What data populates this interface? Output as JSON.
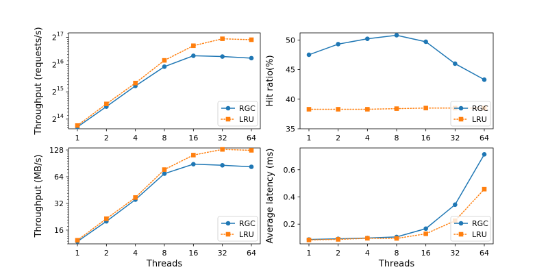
{
  "chart_data": [
    {
      "id": "throughput-req",
      "type": "line",
      "ylabel": "Throughput (requests/s)",
      "xlabel": "",
      "x": [
        1,
        2,
        4,
        8,
        16,
        32,
        64
      ],
      "xticks": [
        "1",
        "2",
        "4",
        "8",
        "16",
        "32",
        "64"
      ],
      "xscale": "log2",
      "yscale": "log2",
      "ylim": [
        12800,
        147000
      ],
      "yticks": [
        {
          "value": 16384,
          "base": "2",
          "exp": "14"
        },
        {
          "value": 32768,
          "base": "2",
          "exp": "15"
        },
        {
          "value": 65536,
          "base": "2",
          "exp": "16"
        },
        {
          "value": 131072,
          "base": "2",
          "exp": "17"
        }
      ],
      "legend": "lower-right",
      "series": [
        {
          "name": "RGC",
          "color": "#1f77b4",
          "marker": "circle",
          "linestyle": "solid",
          "values": [
            13400,
            22500,
            38100,
            62200,
            82100,
            80500,
            77300
          ]
        },
        {
          "name": "LRU",
          "color": "#ff7f0e",
          "marker": "square",
          "linestyle": "dotted",
          "values": [
            13900,
            24100,
            41000,
            73000,
            106000,
            126500,
            123500
          ]
        }
      ]
    },
    {
      "id": "hit-ratio",
      "type": "line",
      "ylabel": "Hit ratio(%)",
      "xlabel": "",
      "x": [
        1,
        2,
        4,
        8,
        16,
        32,
        64
      ],
      "xticks": [
        "1",
        "2",
        "4",
        "8",
        "16",
        "32",
        "64"
      ],
      "xscale": "log2",
      "yscale": "linear",
      "ylim": [
        35,
        51.2
      ],
      "yticks": [
        {
          "value": 35,
          "label": "35"
        },
        {
          "value": 40,
          "label": "40"
        },
        {
          "value": 45,
          "label": "45"
        },
        {
          "value": 50,
          "label": "50"
        }
      ],
      "legend": "lower-right",
      "series": [
        {
          "name": "RGC",
          "color": "#1f77b4",
          "marker": "circle",
          "linestyle": "solid",
          "values": [
            47.5,
            49.3,
            50.2,
            50.8,
            49.7,
            46.0,
            43.3
          ]
        },
        {
          "name": "LRU",
          "color": "#ff7f0e",
          "marker": "square",
          "linestyle": "dotted",
          "values": [
            38.3,
            38.3,
            38.3,
            38.4,
            38.5,
            38.5,
            38.5
          ]
        }
      ]
    },
    {
      "id": "throughput-mb",
      "type": "line",
      "ylabel": "Throughput (MB/s)",
      "xlabel": "Threads",
      "x": [
        1,
        2,
        4,
        8,
        16,
        32,
        64
      ],
      "xticks": [
        "1",
        "2",
        "4",
        "8",
        "16",
        "32",
        "64"
      ],
      "xscale": "log2",
      "yscale": "log2",
      "ylim": [
        11.2,
        135
      ],
      "yticks": [
        {
          "value": 16,
          "label": "16"
        },
        {
          "value": 32,
          "label": "32"
        },
        {
          "value": 64,
          "label": "64"
        },
        {
          "value": 128,
          "label": "128"
        }
      ],
      "legend": "lower-right",
      "series": [
        {
          "name": "RGC",
          "color": "#1f77b4",
          "marker": "circle",
          "linestyle": "solid",
          "values": [
            11.9,
            20.1,
            35.3,
            69.3,
            88.6,
            86.1,
            82.8
          ]
        },
        {
          "name": "LRU",
          "color": "#ff7f0e",
          "marker": "square",
          "linestyle": "dotted",
          "values": [
            12.3,
            21.5,
            37.3,
            77.0,
            112.2,
            130.0,
            127.0
          ]
        }
      ]
    },
    {
      "id": "latency",
      "type": "line",
      "ylabel": "Average latency (ms)",
      "xlabel": "Threads",
      "x": [
        1,
        2,
        4,
        8,
        16,
        32,
        64
      ],
      "xticks": [
        "1",
        "2",
        "4",
        "8",
        "16",
        "32",
        "64"
      ],
      "xscale": "log2",
      "yscale": "linear",
      "ylim": [
        0.055,
        0.76
      ],
      "yticks": [
        {
          "value": 0.2,
          "label": "0.2"
        },
        {
          "value": 0.4,
          "label": "0.4"
        },
        {
          "value": 0.6,
          "label": "0.6"
        }
      ],
      "legend": "lower-right",
      "series": [
        {
          "name": "RGC",
          "color": "#1f77b4",
          "marker": "circle",
          "linestyle": "solid",
          "values": [
            0.087,
            0.092,
            0.098,
            0.106,
            0.167,
            0.343,
            0.713
          ]
        },
        {
          "name": "LRU",
          "color": "#ff7f0e",
          "marker": "square",
          "linestyle": "dotted",
          "values": [
            0.084,
            0.088,
            0.096,
            0.095,
            0.129,
            0.225,
            0.457
          ]
        }
      ]
    }
  ]
}
